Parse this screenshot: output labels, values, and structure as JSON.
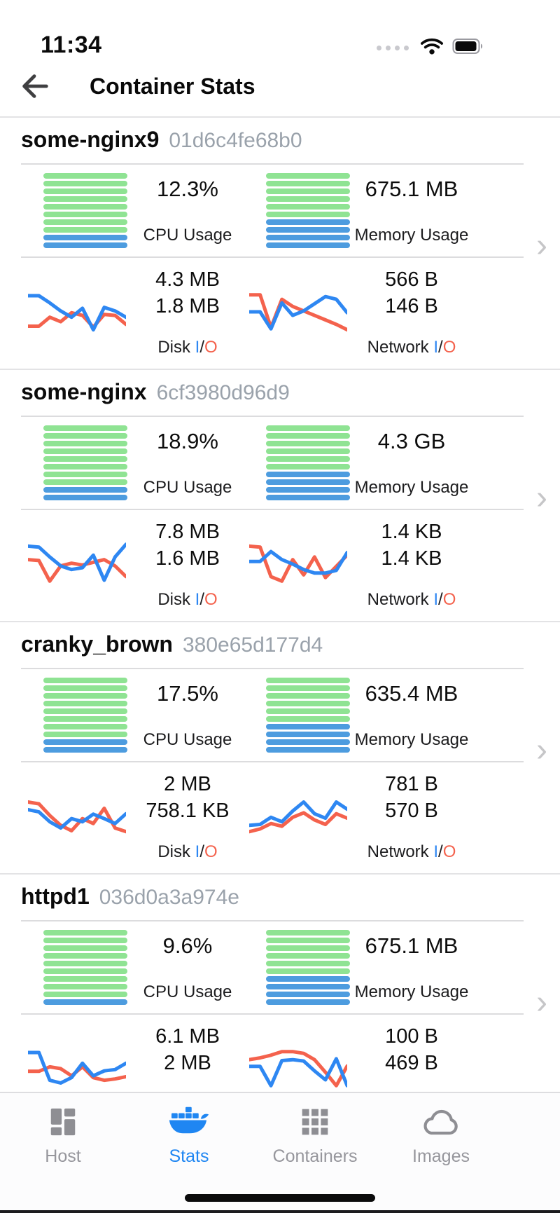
{
  "status_bar": {
    "time": "11:34"
  },
  "header": {
    "title": "Container Stats"
  },
  "labels": {
    "cpu": "CPU Usage",
    "memory": "Memory Usage",
    "disk": "Disk",
    "network": "Network",
    "io_in": "I",
    "io_sep": "/",
    "io_out": "O"
  },
  "colors": {
    "gauge_green": "#8FE393",
    "gauge_blue": "#4D9CDF",
    "line_in": "#2E87F2",
    "line_out": "#F4624D",
    "accent": "#1F86F2",
    "inactive": "#8E8E93"
  },
  "containers": [
    {
      "name": "some-nginx9",
      "id": "01d6c4fe68b0",
      "cpu": {
        "value": "12.3%",
        "gauge": {
          "green": 8,
          "blue": 2
        }
      },
      "memory": {
        "value": "675.1 MB",
        "gauge": {
          "green": 6,
          "blue": 4
        }
      },
      "disk": {
        "in": "4.3 MB",
        "out": "1.8 MB",
        "spark": {
          "in": [
            14,
            14,
            30,
            48,
            62,
            42,
            90,
            40,
            48,
            62
          ],
          "out": [
            82,
            82,
            62,
            72,
            52,
            58,
            84,
            56,
            58,
            78
          ]
        }
      },
      "network": {
        "in": "566 B",
        "out": "146 B",
        "spark": {
          "in": [
            50,
            50,
            88,
            30,
            58,
            48,
            32,
            16,
            22,
            52
          ],
          "out": [
            12,
            12,
            85,
            22,
            38,
            48,
            58,
            68,
            78,
            90
          ]
        }
      }
    },
    {
      "name": "some-nginx",
      "id": "6cf3980d96d9",
      "cpu": {
        "value": "18.9%",
        "gauge": {
          "green": 8,
          "blue": 2
        }
      },
      "memory": {
        "value": "4.3 GB",
        "gauge": {
          "green": 6,
          "blue": 4
        }
      },
      "disk": {
        "in": "7.8 MB",
        "out": "1.6 MB",
        "spark": {
          "in": [
            10,
            12,
            34,
            54,
            62,
            58,
            30,
            86,
            34,
            6
          ],
          "out": [
            40,
            42,
            88,
            54,
            48,
            52,
            46,
            40,
            54,
            78
          ]
        }
      },
      "network": {
        "in": "1.4 KB",
        "out": "1.4 KB",
        "spark": {
          "in": [
            44,
            44,
            22,
            40,
            50,
            62,
            70,
            70,
            64,
            24
          ],
          "out": [
            10,
            12,
            78,
            88,
            40,
            74,
            34,
            80,
            55,
            30
          ]
        }
      }
    },
    {
      "name": "cranky_brown",
      "id": "380e65d177d4",
      "cpu": {
        "value": "17.5%",
        "gauge": {
          "green": 8,
          "blue": 2
        }
      },
      "memory": {
        "value": "635.4 MB",
        "gauge": {
          "green": 6,
          "blue": 4
        }
      },
      "disk": {
        "in": "2 MB",
        "out": "758.1 KB",
        "spark": {
          "in": [
            35,
            40,
            62,
            76,
            55,
            62,
            45,
            55,
            66,
            44
          ],
          "out": [
            18,
            22,
            48,
            70,
            82,
            55,
            66,
            32,
            76,
            84
          ]
        }
      },
      "network": {
        "in": "781 B",
        "out": "570 B",
        "spark": {
          "in": [
            70,
            68,
            52,
            62,
            38,
            18,
            44,
            54,
            18,
            34
          ],
          "out": [
            84,
            78,
            66,
            72,
            52,
            42,
            58,
            68,
            44,
            54
          ]
        }
      }
    },
    {
      "name": "httpd1",
      "id": "036d0a3a974e",
      "cpu": {
        "value": "9.6%",
        "gauge": {
          "green": 9,
          "blue": 1
        }
      },
      "memory": {
        "value": "675.1 MB",
        "gauge": {
          "green": 6,
          "blue": 4
        }
      },
      "disk": {
        "in": "6.1 MB",
        "out": "2 MB",
        "spark": {
          "in": [
            14,
            14,
            76,
            82,
            70,
            38,
            66,
            55,
            52,
            38
          ],
          "out": [
            56,
            56,
            46,
            50,
            66,
            46,
            70,
            76,
            73,
            68
          ]
        }
      },
      "network": {
        "in": "100 B",
        "out": "469 B",
        "spark": {
          "in": [
            45,
            45,
            88,
            32,
            30,
            33,
            55,
            75,
            28,
            88
          ],
          "out": [
            30,
            26,
            20,
            12,
            12,
            16,
            30,
            58,
            88,
            44
          ]
        }
      }
    }
  ],
  "tab_bar": {
    "items": [
      {
        "label": "Host",
        "active": false
      },
      {
        "label": "Stats",
        "active": true
      },
      {
        "label": "Containers",
        "active": false
      },
      {
        "label": "Images",
        "active": false
      }
    ]
  }
}
